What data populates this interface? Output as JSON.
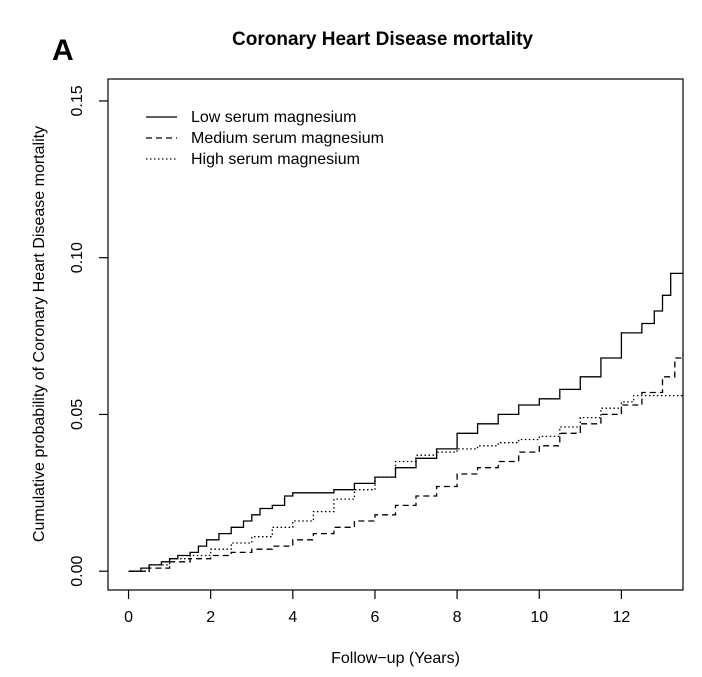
{
  "panel_letter": "A",
  "chart_data": {
    "type": "line",
    "title": "Coronary Heart Disease mortality",
    "xlabel": "Follow−up (Years)",
    "ylabel": "Cumulative probability of Coronary Heart Disease mortality",
    "xlim": [
      -0.5,
      13.5
    ],
    "ylim": [
      -0.006,
      0.157
    ],
    "x_ticks": [
      0,
      2,
      4,
      6,
      8,
      10,
      12
    ],
    "x_tick_labels": [
      "0",
      "2",
      "4",
      "6",
      "8",
      "10",
      "12"
    ],
    "y_ticks": [
      0.0,
      0.05,
      0.1,
      0.15
    ],
    "y_tick_labels": [
      "0.00",
      "0.05",
      "0.10",
      "0.15"
    ],
    "grid": false,
    "legend_position": "top-left",
    "series": [
      {
        "name": "Low serum magnesium",
        "dash": "solid",
        "color": "#000000",
        "points": [
          [
            0,
            0
          ],
          [
            0.3,
            0.001
          ],
          [
            0.5,
            0.002
          ],
          [
            0.8,
            0.003
          ],
          [
            1.0,
            0.004
          ],
          [
            1.2,
            0.005
          ],
          [
            1.5,
            0.006
          ],
          [
            1.7,
            0.008
          ],
          [
            1.9,
            0.01
          ],
          [
            2.2,
            0.012
          ],
          [
            2.5,
            0.014
          ],
          [
            2.8,
            0.016
          ],
          [
            3.0,
            0.018
          ],
          [
            3.2,
            0.02
          ],
          [
            3.5,
            0.021
          ],
          [
            3.8,
            0.024
          ],
          [
            4.0,
            0.025
          ],
          [
            4.5,
            0.025
          ],
          [
            5.0,
            0.026
          ],
          [
            5.5,
            0.028
          ],
          [
            6.0,
            0.03
          ],
          [
            6.5,
            0.033
          ],
          [
            7.0,
            0.036
          ],
          [
            7.5,
            0.039
          ],
          [
            8.0,
            0.044
          ],
          [
            8.5,
            0.047
          ],
          [
            9.0,
            0.05
          ],
          [
            9.5,
            0.053
          ],
          [
            10.0,
            0.055
          ],
          [
            10.5,
            0.058
          ],
          [
            11.0,
            0.062
          ],
          [
            11.5,
            0.068
          ],
          [
            12.0,
            0.076
          ],
          [
            12.5,
            0.079
          ],
          [
            12.8,
            0.083
          ],
          [
            13.0,
            0.088
          ],
          [
            13.2,
            0.095
          ],
          [
            13.5,
            0.095
          ]
        ]
      },
      {
        "name": "Medium serum magnesium",
        "dash": "dashed",
        "color": "#000000",
        "points": [
          [
            0,
            0
          ],
          [
            0.5,
            0.001
          ],
          [
            1.0,
            0.003
          ],
          [
            1.5,
            0.004
          ],
          [
            2.0,
            0.005
          ],
          [
            2.5,
            0.006
          ],
          [
            3.0,
            0.007
          ],
          [
            3.5,
            0.008
          ],
          [
            4.0,
            0.01
          ],
          [
            4.5,
            0.012
          ],
          [
            5.0,
            0.014
          ],
          [
            5.5,
            0.016
          ],
          [
            6.0,
            0.018
          ],
          [
            6.5,
            0.021
          ],
          [
            7.0,
            0.024
          ],
          [
            7.5,
            0.027
          ],
          [
            8.0,
            0.031
          ],
          [
            8.5,
            0.033
          ],
          [
            9.0,
            0.035
          ],
          [
            9.5,
            0.038
          ],
          [
            10.0,
            0.04
          ],
          [
            10.5,
            0.044
          ],
          [
            11.0,
            0.047
          ],
          [
            11.5,
            0.05
          ],
          [
            12.0,
            0.053
          ],
          [
            12.5,
            0.057
          ],
          [
            13.0,
            0.062
          ],
          [
            13.3,
            0.068
          ],
          [
            13.5,
            0.069
          ]
        ]
      },
      {
        "name": "High serum magnesium",
        "dash": "dotted",
        "color": "#000000",
        "points": [
          [
            0,
            0
          ],
          [
            0.5,
            0.002
          ],
          [
            1.0,
            0.004
          ],
          [
            1.5,
            0.005
          ],
          [
            2.0,
            0.007
          ],
          [
            2.5,
            0.009
          ],
          [
            3.0,
            0.011
          ],
          [
            3.5,
            0.014
          ],
          [
            4.0,
            0.016
          ],
          [
            4.5,
            0.019
          ],
          [
            5.0,
            0.023
          ],
          [
            5.5,
            0.026
          ],
          [
            6.0,
            0.03
          ],
          [
            6.5,
            0.035
          ],
          [
            7.0,
            0.037
          ],
          [
            7.5,
            0.038
          ],
          [
            8.0,
            0.039
          ],
          [
            8.5,
            0.04
          ],
          [
            9.0,
            0.041
          ],
          [
            9.5,
            0.042
          ],
          [
            10.0,
            0.043
          ],
          [
            10.5,
            0.046
          ],
          [
            11.0,
            0.049
          ],
          [
            11.5,
            0.052
          ],
          [
            12.0,
            0.054
          ],
          [
            12.3,
            0.056
          ],
          [
            13.5,
            0.056
          ]
        ]
      }
    ]
  }
}
